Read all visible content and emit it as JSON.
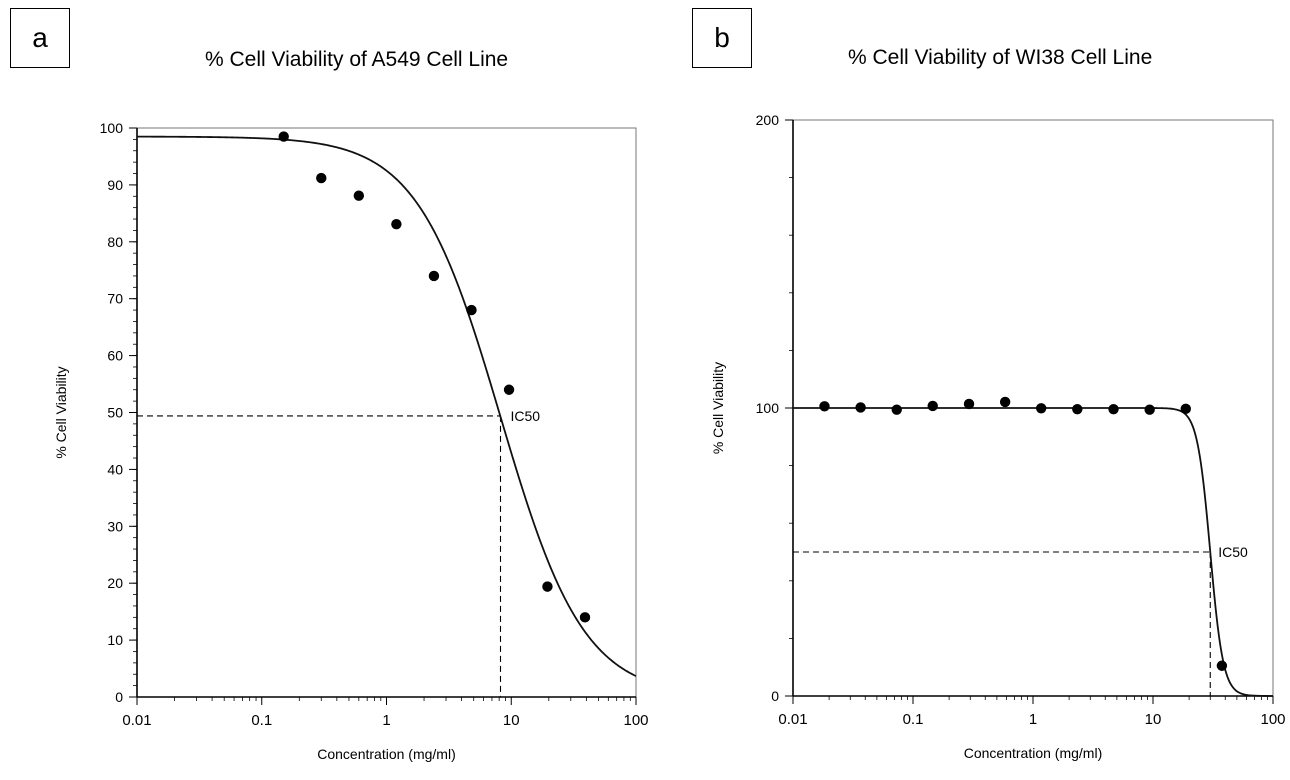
{
  "chart_data": [
    {
      "panel_label": "a",
      "type": "scatter",
      "title": "% Cell Viability of A549 Cell Line",
      "xlabel": "Concentration (mg/ml)",
      "ylabel": "% Cell Viability",
      "x_scale": "log",
      "xlim": [
        0.01,
        100
      ],
      "ylim": [
        0,
        100
      ],
      "x_ticks": [
        "0.01",
        "0.1",
        "1",
        "10",
        "100"
      ],
      "y_ticks": [
        "0",
        "10",
        "20",
        "30",
        "40",
        "50",
        "60",
        "70",
        "80",
        "90",
        "100"
      ],
      "grid": false,
      "series": [
        {
          "points": [
            {
              "x": 0.15,
              "y": 98.5
            },
            {
              "x": 0.3,
              "y": 91.2
            },
            {
              "x": 0.6,
              "y": 88.1
            },
            {
              "x": 1.2,
              "y": 83.1
            },
            {
              "x": 2.4,
              "y": 74
            },
            {
              "x": 4.8,
              "y": 68
            },
            {
              "x": 9.6,
              "y": 54
            },
            {
              "x": 19.5,
              "y": 19.4
            },
            {
              "x": 39,
              "y": 14
            }
          ]
        }
      ],
      "fit_curve": {
        "top": 98.5,
        "bottom": 0,
        "ic50": 8.2,
        "hill": 1.3
      },
      "ic50": {
        "label": "IC50",
        "x": 8.2,
        "y": 49.4
      }
    },
    {
      "panel_label": "b",
      "type": "scatter",
      "title": "% Cell Viability of WI38 Cell Line",
      "xlabel": "Concentration (mg/ml)",
      "ylabel": "% Cell Viability",
      "x_scale": "log",
      "xlim": [
        0.01,
        100
      ],
      "ylim": [
        0,
        200
      ],
      "x_ticks": [
        "0.01",
        "0.1",
        "1",
        "10",
        "100"
      ],
      "y_ticks": [
        "0",
        "100",
        "200"
      ],
      "grid": false,
      "series": [
        {
          "points": [
            {
              "x": 0.0183,
              "y": 100.6
            },
            {
              "x": 0.0366,
              "y": 100.2
            },
            {
              "x": 0.0732,
              "y": 99.4
            },
            {
              "x": 0.146,
              "y": 100.7
            },
            {
              "x": 0.293,
              "y": 101.4
            },
            {
              "x": 0.586,
              "y": 102.1
            },
            {
              "x": 1.17,
              "y": 99.9
            },
            {
              "x": 2.34,
              "y": 99.6
            },
            {
              "x": 4.69,
              "y": 99.6
            },
            {
              "x": 9.38,
              "y": 99.4
            },
            {
              "x": 18.75,
              "y": 99.7
            },
            {
              "x": 37.5,
              "y": 10.5
            }
          ]
        }
      ],
      "fit_curve": {
        "top": 100,
        "bottom": 0,
        "ic50": 30,
        "hill": 8
      },
      "ic50": {
        "label": "IC50",
        "x": 30,
        "y": 50
      }
    }
  ]
}
